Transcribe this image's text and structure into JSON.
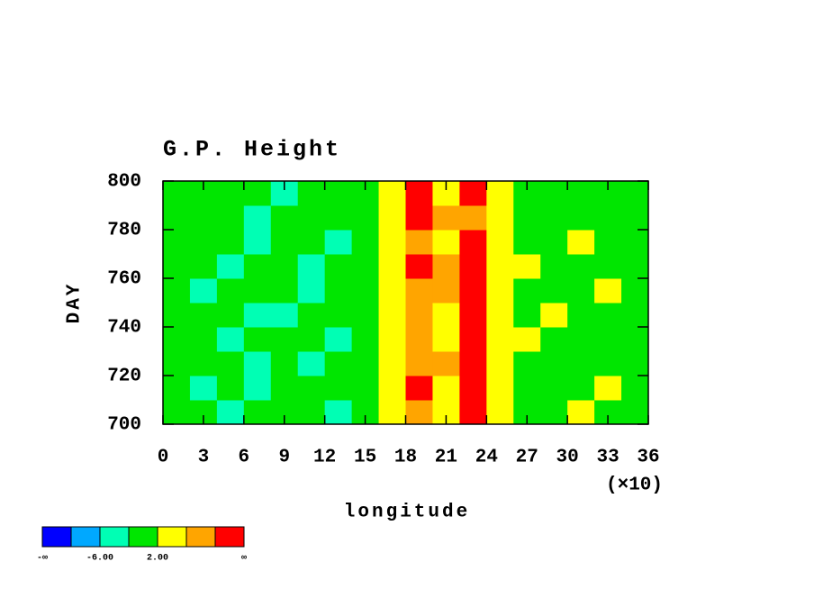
{
  "chart_data": {
    "type": "heatmap",
    "title": "G.P. Height",
    "xlabel": "longitude",
    "ylabel": "DAY",
    "x_scale_label": "(×10)",
    "xlim": [
      0,
      36
    ],
    "xticks": [
      0,
      3,
      6,
      9,
      12,
      15,
      18,
      21,
      24,
      27,
      30,
      33,
      36
    ],
    "ylim": [
      700,
      800
    ],
    "yticks": [
      700,
      720,
      740,
      760,
      780,
      800
    ],
    "x": [
      1,
      3,
      5,
      7,
      9,
      11,
      13,
      15,
      17,
      19,
      21,
      23,
      25,
      27,
      29,
      31,
      33,
      35
    ],
    "y": [
      705,
      715,
      725,
      735,
      745,
      755,
      765,
      775,
      785,
      795
    ],
    "z": [
      [
        -1,
        0,
        -3,
        -2,
        1,
        -1,
        -3,
        0,
        2,
        9,
        3,
        11,
        4,
        1,
        0,
        2,
        -1,
        1
      ],
      [
        0,
        -3,
        -1,
        -4,
        -2,
        0,
        -1,
        1,
        3,
        11,
        5,
        12,
        3,
        0,
        1,
        -1,
        2,
        0
      ],
      [
        -2,
        -1,
        0,
        -3,
        -1,
        -4,
        -2,
        0,
        4,
        8,
        6,
        11,
        4,
        1,
        -1,
        0,
        1,
        -2
      ],
      [
        1,
        -2,
        -4,
        -1,
        0,
        -2,
        -3,
        -1,
        3,
        7,
        4,
        10,
        5,
        2,
        0,
        1,
        -1,
        0
      ],
      [
        -1,
        0,
        -2,
        -3,
        -5,
        -1,
        0,
        -2,
        3,
        9,
        5,
        12,
        3,
        0,
        2,
        -1,
        0,
        1
      ],
      [
        0,
        -3,
        -1,
        0,
        -2,
        -4,
        -1,
        1,
        4,
        8,
        6,
        13,
        4,
        1,
        -1,
        0,
        2,
        -1
      ],
      [
        -2,
        -1,
        -3,
        -2,
        0,
        -3,
        -2,
        0,
        5,
        10,
        7,
        11,
        3,
        2,
        0,
        -1,
        1,
        0
      ],
      [
        1,
        0,
        -2,
        -4,
        -1,
        -1,
        -3,
        -1,
        4,
        9,
        5,
        12,
        4,
        0,
        1,
        2,
        -1,
        1
      ],
      [
        -1,
        -2,
        0,
        -3,
        -2,
        -1,
        0,
        -2,
        3,
        11,
        6,
        9,
        3,
        1,
        -1,
        0,
        1,
        -1
      ],
      [
        0,
        -1,
        -2,
        0,
        -4,
        -2,
        -1,
        0,
        2,
        10,
        4,
        12,
        2,
        0,
        -2,
        1,
        0,
        -1
      ]
    ],
    "colorbar": {
      "colors": [
        "#0000ff",
        "#00a8ff",
        "#00ffb4",
        "#00e600",
        "#ffff00",
        "#ffa500",
        "#ff0000"
      ],
      "levels": [
        -10,
        -6,
        -2,
        2,
        6,
        10
      ],
      "labels": [
        {
          "value": -6,
          "label": "-6.00"
        },
        {
          "value": 2,
          "label": "2.00"
        }
      ],
      "low_label": "-∞",
      "high_label": "∞"
    }
  }
}
